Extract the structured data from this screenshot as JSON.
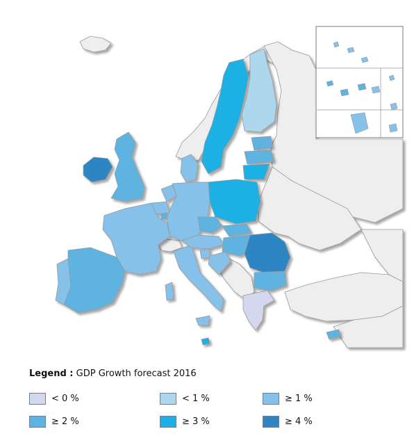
{
  "legend": {
    "label": "Legend :",
    "title": "GDP Growth forecast 2016",
    "items": [
      {
        "label": "< 0 %",
        "color": "#d4d8ef"
      },
      {
        "label": "< 1 %",
        "color": "#acd7ec"
      },
      {
        "label": "≥ 1 %",
        "color": "#85c1e8"
      },
      {
        "label": "≥ 2 %",
        "color": "#5fb3e1"
      },
      {
        "label": "≥ 3 %",
        "color": "#1eb0e4"
      },
      {
        "label": "≥ 4 %",
        "color": "#2f85c3"
      }
    ]
  },
  "colors": {
    "non_member": "#eeeeee",
    "border": "#999999",
    "sea": "#ffffff"
  },
  "regions": [
    {
      "name": "Ireland",
      "class": "≥ 4 %"
    },
    {
      "name": "United Kingdom",
      "class": "≥ 2 %"
    },
    {
      "name": "Sweden",
      "class": "≥ 3 %"
    },
    {
      "name": "Finland",
      "class": "< 1 %"
    },
    {
      "name": "Estonia",
      "class": "≥ 2 %"
    },
    {
      "name": "Latvia",
      "class": "≥ 2 %"
    },
    {
      "name": "Lithuania",
      "class": "≥ 3 %"
    },
    {
      "name": "Poland",
      "class": "≥ 3 %"
    },
    {
      "name": "Denmark",
      "class": "≥ 1 %"
    },
    {
      "name": "Netherlands",
      "class": "≥ 1 %"
    },
    {
      "name": "Belgium",
      "class": "≥ 1 %"
    },
    {
      "name": "Luxembourg",
      "class": "≥ 2 %"
    },
    {
      "name": "Germany",
      "class": "≥ 1 %"
    },
    {
      "name": "France",
      "class": "≥ 1 %"
    },
    {
      "name": "Spain",
      "class": "≥ 2 %"
    },
    {
      "name": "Portugal",
      "class": "≥ 1 %"
    },
    {
      "name": "Italy",
      "class": "≥ 1 %"
    },
    {
      "name": "Austria",
      "class": "≥ 1 %"
    },
    {
      "name": "Czech Republic",
      "class": "≥ 2 %"
    },
    {
      "name": "Slovakia",
      "class": "≥ 2 %"
    },
    {
      "name": "Hungary",
      "class": "≥ 2 %"
    },
    {
      "name": "Slovenia",
      "class": "≥ 1 %"
    },
    {
      "name": "Croatia",
      "class": "≥ 1 %"
    },
    {
      "name": "Romania",
      "class": "≥ 4 %"
    },
    {
      "name": "Bulgaria",
      "class": "≥ 2 %"
    },
    {
      "name": "Greece",
      "class": "< 0 %"
    },
    {
      "name": "Cyprus",
      "class": "≥ 2 %"
    },
    {
      "name": "Malta",
      "class": "≥ 3 %"
    }
  ]
}
